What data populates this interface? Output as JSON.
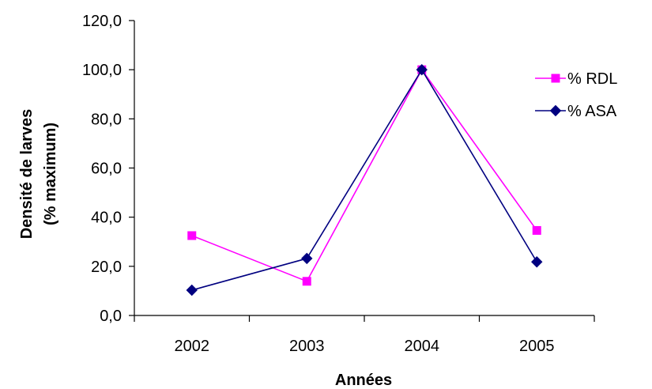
{
  "chart_data": {
    "type": "line",
    "categories": [
      "2002",
      "2003",
      "2004",
      "2005"
    ],
    "series": [
      {
        "name": "% RDL",
        "values": [
          32.5,
          13.9,
          100.0,
          34.6
        ],
        "color": "#ff00ff",
        "marker": "square"
      },
      {
        "name": "% ASA",
        "values": [
          10.3,
          23.2,
          100.0,
          21.8
        ],
        "color": "#000080",
        "marker": "diamond"
      }
    ],
    "xlabel": "Années",
    "ylabel": [
      "Densité de larves",
      "(% maximum)"
    ],
    "ylim": [
      0,
      120
    ],
    "yticks": [
      "0,0",
      "20,0",
      "40,0",
      "60,0",
      "80,0",
      "100,0",
      "120,0"
    ],
    "grid": false,
    "legend_position": "right"
  }
}
